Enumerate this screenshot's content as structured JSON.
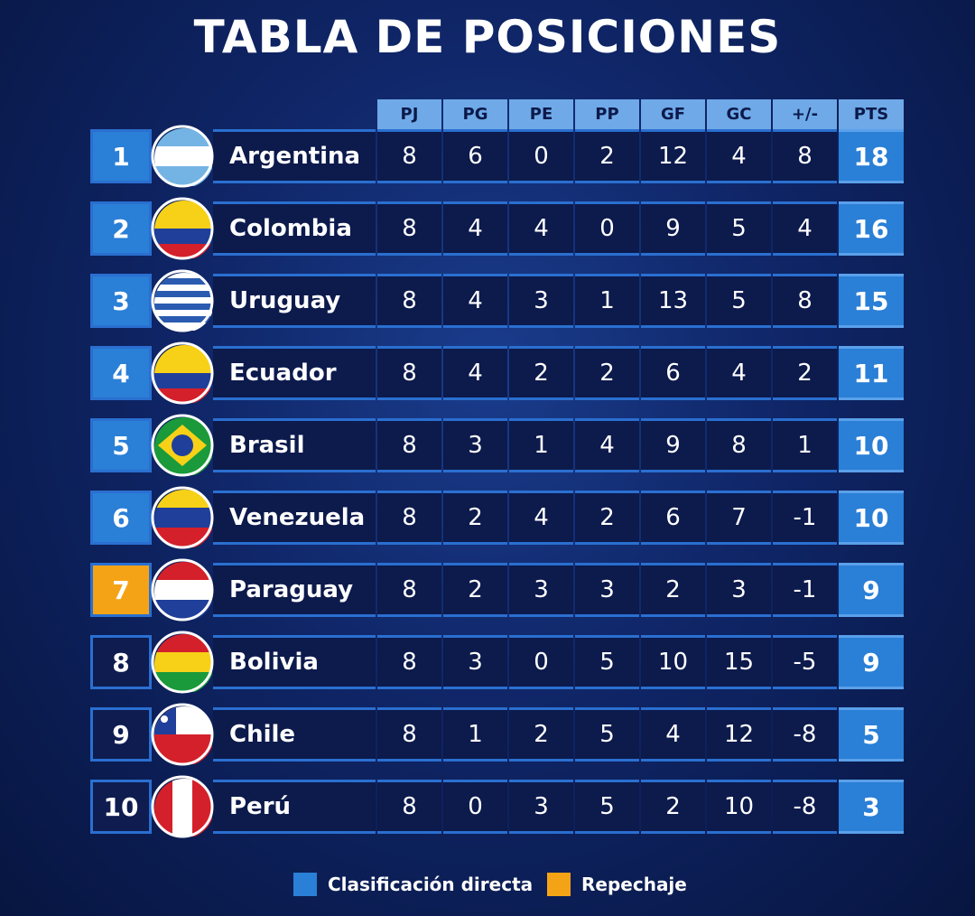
{
  "title": "TABLA DE POSICIONES",
  "table": {
    "headers": [
      "PJ",
      "PG",
      "PE",
      "PP",
      "GF",
      "GC",
      "+/-",
      "PTS"
    ],
    "rows": [
      {
        "position": 1,
        "team": "Argentina",
        "values": [
          8,
          6,
          0,
          2,
          12,
          4,
          8,
          18
        ],
        "color": "#2a7fd6"
      },
      {
        "position": 2,
        "team": "Colombia",
        "values": [
          8,
          4,
          4,
          0,
          9,
          5,
          4,
          16
        ],
        "color": "#2a7fd6"
      },
      {
        "position": 3,
        "team": "Uruguay",
        "values": [
          8,
          4,
          3,
          1,
          13,
          5,
          8,
          15
        ],
        "color": "#2a7fd6"
      },
      {
        "position": 4,
        "team": "Ecuador",
        "values": [
          8,
          4,
          2,
          2,
          6,
          4,
          2,
          11
        ],
        "color": "#2a7fd6"
      },
      {
        "position": 5,
        "team": "Brasil",
        "values": [
          8,
          3,
          1,
          4,
          9,
          8,
          1,
          10
        ],
        "color": "#2a7fd6"
      },
      {
        "position": 6,
        "team": "Venezuela",
        "values": [
          8,
          2,
          4,
          2,
          6,
          7,
          -1,
          10
        ],
        "color": "#2a7fd6"
      },
      {
        "position": 7,
        "team": "Paraguay",
        "values": [
          8,
          2,
          3,
          3,
          2,
          3,
          -1,
          9
        ],
        "color": "#f5a316"
      },
      {
        "position": 8,
        "team": "Bolivia",
        "values": [
          8,
          3,
          0,
          5,
          10,
          15,
          -5,
          9
        ],
        "color": "#0e1c50"
      },
      {
        "position": 9,
        "team": "Chile",
        "values": [
          8,
          1,
          2,
          5,
          4,
          12,
          -8,
          5
        ],
        "color": "#0e1c50"
      },
      {
        "position": 10,
        "team": "Perú",
        "values": [
          8,
          0,
          3,
          5,
          2,
          10,
          -8,
          3
        ],
        "color": "#0e1c50"
      }
    ]
  },
  "legend": [
    {
      "label": "Clasificación directa",
      "color": "#2a7fd6"
    },
    {
      "label": "Repechaje",
      "color": "#f5a316"
    }
  ]
}
